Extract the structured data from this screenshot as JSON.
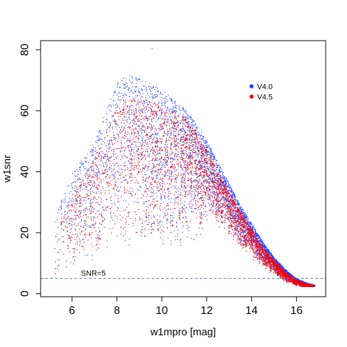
{
  "chart_data": {
    "type": "scatter",
    "xlabel": "w1mpro [mag]",
    "ylabel": "w1snr",
    "xlim": [
      4.6,
      17.3
    ],
    "ylim": [
      -1,
      83
    ],
    "x_ticks": [
      6,
      8,
      10,
      12,
      14,
      16
    ],
    "y_ticks": [
      0,
      20,
      40,
      60,
      80
    ],
    "grid": false,
    "legend_placement": "top-right",
    "series": [
      {
        "name": "V4.0",
        "color": "#1f3fff",
        "envelope": {
          "x": [
            5.2,
            6.0,
            7.0,
            7.5,
            8.0,
            8.6,
            9.0,
            10.0,
            11.0,
            11.5,
            12.0,
            12.5,
            13.0,
            13.5,
            14.0,
            14.5,
            15.0,
            15.5,
            16.0,
            16.5,
            16.8
          ],
          "y_max": [
            25,
            40,
            50,
            60,
            70,
            72,
            71,
            67,
            61,
            56,
            50,
            43,
            36,
            29,
            23,
            17,
            12,
            8,
            5,
            3.5,
            3
          ]
        }
      },
      {
        "name": "V4.5",
        "color": "#ff0000",
        "envelope": {
          "x": [
            5.2,
            6.0,
            7.0,
            7.5,
            8.0,
            8.6,
            9.0,
            10.0,
            11.0,
            11.5,
            12.0,
            12.5,
            13.0,
            13.5,
            14.0,
            14.5,
            15.0,
            15.5,
            16.0,
            16.5,
            16.8
          ],
          "y_max": [
            20,
            33,
            45,
            53,
            63,
            64,
            64,
            62,
            58,
            53,
            47,
            40,
            33,
            27,
            21,
            15,
            11,
            7,
            4.5,
            3.2,
            2.8
          ]
        }
      }
    ],
    "reference_line": {
      "y": 5,
      "label": "SNR=5",
      "style": "dashed",
      "color": "#4f6fff"
    },
    "outlier_point": {
      "x": 9.55,
      "y": 80.5
    }
  }
}
